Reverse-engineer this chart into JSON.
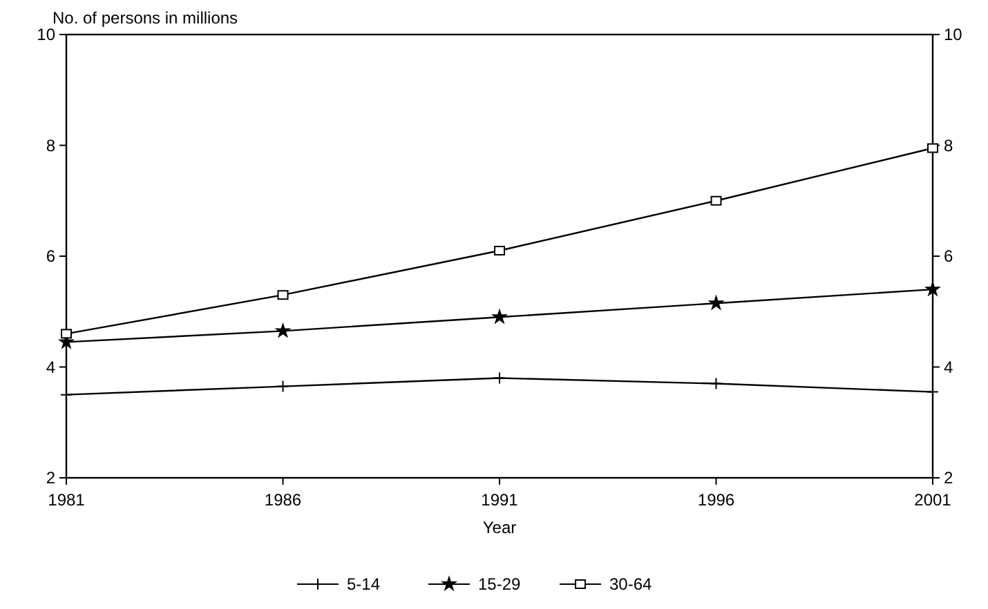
{
  "chart_data": {
    "type": "line",
    "ylabel": "No. of persons in millions",
    "xlabel": "Year",
    "x": [
      1981,
      1986,
      1991,
      1996,
      2001
    ],
    "xlim": [
      1981,
      2001
    ],
    "xticks": [
      1981,
      1986,
      1991,
      1996,
      2001
    ],
    "ylim": [
      2,
      10
    ],
    "yticks": [
      2,
      4,
      6,
      8,
      10
    ],
    "y2lim": [
      2,
      10
    ],
    "y2ticks": [
      2,
      4,
      6,
      8,
      10
    ],
    "series": [
      {
        "name": "5-14",
        "color": "#000000",
        "marker": "cross",
        "values": [
          3.5,
          3.65,
          3.8,
          3.7,
          3.55
        ]
      },
      {
        "name": "15-29",
        "color": "#000000",
        "marker": "star",
        "values": [
          4.45,
          4.65,
          4.9,
          5.15,
          5.4
        ]
      },
      {
        "name": "30-64",
        "color": "#000000",
        "marker": "square",
        "values": [
          4.6,
          5.3,
          6.1,
          7.0,
          7.95
        ]
      }
    ],
    "grid": false,
    "legend": "bottom",
    "line_style": "solid"
  }
}
